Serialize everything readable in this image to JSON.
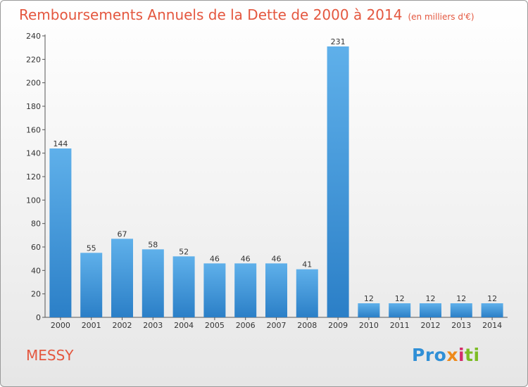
{
  "title": "Remboursements Annuels de la Dette de 2000 à 2014",
  "subtitle": "(en milliers d'€)",
  "city": "MESSY",
  "brand": "Proxiti",
  "colors": {
    "title": "#e4573f",
    "bar_top": "#5fb0ea",
    "bar_bottom": "#2b7fc7"
  },
  "chart_data": {
    "type": "bar",
    "categories": [
      "2000",
      "2001",
      "2002",
      "2003",
      "2004",
      "2005",
      "2006",
      "2007",
      "2008",
      "2009",
      "2010",
      "2011",
      "2012",
      "2013",
      "2014"
    ],
    "values": [
      144,
      55,
      67,
      58,
      52,
      46,
      46,
      46,
      41,
      231,
      12,
      12,
      12,
      12,
      12
    ],
    "ylim": [
      0,
      240
    ],
    "yticks": [
      0,
      20,
      40,
      60,
      80,
      100,
      120,
      140,
      160,
      180,
      200,
      220,
      240
    ],
    "grid": false,
    "data_labels": true
  }
}
